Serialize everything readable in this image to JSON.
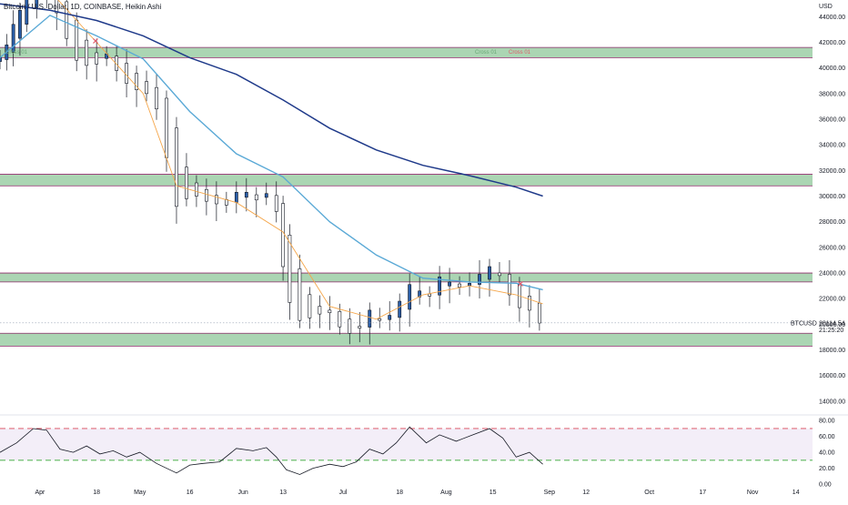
{
  "header": {
    "title": "Bitcoin / U.S. Dollar, 1D, COINBASE, Heikin Ashi"
  },
  "price_axis": {
    "unit": "USD",
    "last_label": "BTCUSD",
    "last_price": "20114.54",
    "countdown": "21:25:20"
  },
  "annotations": {
    "cross_left": "Cross 01",
    "cross_mid": "Cross 01",
    "cross_right": "Cross 01"
  },
  "colors": {
    "up_candle": "#2a5ea8",
    "down_candle": "#ffffff",
    "candle_outline": "#131722",
    "support_zone": "#8fc79a",
    "support_border": "#8e2a6a",
    "ma_fast": "#f5a64a",
    "ma_mid": "#5aa9d6",
    "ma_slow": "#1f3a8a",
    "rsi_line": "#131722",
    "rsi_band": "#f3eef8",
    "rsi_upper": "#e06c7a",
    "rsi_lower": "#5cb85c",
    "cross_green": "#6aa877",
    "cross_red": "#e0596a"
  },
  "chart_data": [
    {
      "type": "candlestick",
      "title": "Bitcoin / U.S. Dollar, 1D, COINBASE, Heikin Ashi",
      "y_ticks": [
        "44000.00",
        "42000.00",
        "40000.00",
        "38000.00",
        "36000.00",
        "34000.00",
        "32000.00",
        "30000.00",
        "28000.00",
        "26000.00",
        "24000.00",
        "22000.00",
        "20000.00",
        "18000.00",
        "16000.00",
        "14000.00"
      ],
      "ylim": [
        13000,
        45300
      ],
      "x_ticks": [
        "Apr",
        "18",
        "May",
        "16",
        "Jun",
        "13",
        "Jul",
        "18",
        "Aug",
        "15",
        "Sep",
        "12",
        "Oct",
        "17",
        "Nov",
        "14"
      ],
      "support_zones": [
        [
          40800,
          41600
        ],
        [
          30800,
          31700
        ],
        [
          23300,
          24000
        ],
        [
          18300,
          19300
        ]
      ],
      "close_series": [
        [
          "2022-03-20",
          40800
        ],
        [
          "2022-03-22",
          41800
        ],
        [
          "2022-03-24",
          43400
        ],
        [
          "2022-03-26",
          44500
        ],
        [
          "2022-03-28",
          46000
        ],
        [
          "2022-03-31",
          46800
        ],
        [
          "2022-04-03",
          46300
        ],
        [
          "2022-04-06",
          44300
        ],
        [
          "2022-04-09",
          42300
        ],
        [
          "2022-04-12",
          40600
        ],
        [
          "2022-04-15",
          40200
        ],
        [
          "2022-04-18",
          40300
        ],
        [
          "2022-04-21",
          41100
        ],
        [
          "2022-04-24",
          39800
        ],
        [
          "2022-04-27",
          38800
        ],
        [
          "2022-04-30",
          38300
        ],
        [
          "2022-05-03",
          38000
        ],
        [
          "2022-05-06",
          36800
        ],
        [
          "2022-05-09",
          33000
        ],
        [
          "2022-05-12",
          29200
        ],
        [
          "2022-05-15",
          29800
        ],
        [
          "2022-05-18",
          30000
        ],
        [
          "2022-05-21",
          29600
        ],
        [
          "2022-05-24",
          29400
        ],
        [
          "2022-05-27",
          29300
        ],
        [
          "2022-05-30",
          30300
        ],
        [
          "2022-06-02",
          30300
        ],
        [
          "2022-06-05",
          29700
        ],
        [
          "2022-06-08",
          30200
        ],
        [
          "2022-06-11",
          28800
        ],
        [
          "2022-06-13",
          24500
        ],
        [
          "2022-06-15",
          21700
        ],
        [
          "2022-06-18",
          20300
        ],
        [
          "2022-06-21",
          20500
        ],
        [
          "2022-06-24",
          20800
        ],
        [
          "2022-06-27",
          20900
        ],
        [
          "2022-06-30",
          19800
        ],
        [
          "2022-07-03",
          19300
        ],
        [
          "2022-07-06",
          19700
        ],
        [
          "2022-07-09",
          21100
        ],
        [
          "2022-07-12",
          20300
        ],
        [
          "2022-07-15",
          20700
        ],
        [
          "2022-07-18",
          21800
        ],
        [
          "2022-07-21",
          23100
        ],
        [
          "2022-07-24",
          22600
        ],
        [
          "2022-07-27",
          22200
        ],
        [
          "2022-07-30",
          23700
        ],
        [
          "2022-08-02",
          23300
        ],
        [
          "2022-08-05",
          22900
        ],
        [
          "2022-08-08",
          23200
        ],
        [
          "2022-08-11",
          23900
        ],
        [
          "2022-08-14",
          24500
        ],
        [
          "2022-08-17",
          23800
        ],
        [
          "2022-08-20",
          22300
        ],
        [
          "2022-08-23",
          21300
        ],
        [
          "2022-08-26",
          21100
        ],
        [
          "2022-08-29",
          20100
        ]
      ],
      "moving_averages": [
        {
          "points": [
            [
              "2022-04-04",
              46000
            ],
            [
              "2022-04-18",
              42000
            ],
            [
              "2022-05-02",
              38000
            ],
            [
              "2022-05-12",
              30800
            ],
            [
              "2022-05-30",
              29500
            ],
            [
              "2022-06-13",
              27200
            ],
            [
              "2022-06-27",
              21400
            ],
            [
              "2022-07-11",
              20400
            ],
            [
              "2022-07-25",
              22300
            ],
            [
              "2022-08-08",
              23000
            ],
            [
              "2022-08-22",
              22300
            ],
            [
              "2022-08-30",
              21600
            ]
          ]
        },
        {
          "points": [
            [
              "2022-03-20",
              40800
            ],
            [
              "2022-04-04",
              44100
            ],
            [
              "2022-04-18",
              42500
            ],
            [
              "2022-05-02",
              40700
            ],
            [
              "2022-05-16",
              36600
            ],
            [
              "2022-05-30",
              33300
            ],
            [
              "2022-06-13",
              31500
            ],
            [
              "2022-06-27",
              28000
            ],
            [
              "2022-07-11",
              25400
            ],
            [
              "2022-07-25",
              23600
            ],
            [
              "2022-08-08",
              23300
            ],
            [
              "2022-08-22",
              23200
            ],
            [
              "2022-08-30",
              22700
            ]
          ]
        },
        {
          "points": [
            [
              "2022-03-20",
              45000
            ],
            [
              "2022-04-04",
              44500
            ],
            [
              "2022-04-18",
              43700
            ],
            [
              "2022-05-02",
              42500
            ],
            [
              "2022-05-16",
              40800
            ],
            [
              "2022-05-30",
              39500
            ],
            [
              "2022-06-13",
              37500
            ],
            [
              "2022-06-27",
              35300
            ],
            [
              "2022-07-11",
              33600
            ],
            [
              "2022-07-25",
              32400
            ],
            [
              "2022-08-08",
              31600
            ],
            [
              "2022-08-22",
              30700
            ],
            [
              "2022-08-30",
              30000
            ]
          ]
        }
      ]
    },
    {
      "type": "line",
      "y_ticks": [
        "80.00",
        "60.00",
        "40.00",
        "20.00",
        "0.00"
      ],
      "ylim": [
        0,
        86
      ],
      "levels": [
        70,
        30
      ],
      "series": [
        {
          "points": [
            [
              "2022-03-20",
              40
            ],
            [
              "2022-03-25",
              52
            ],
            [
              "2022-03-30",
              70
            ],
            [
              "2022-04-03",
              68
            ],
            [
              "2022-04-07",
              44
            ],
            [
              "2022-04-11",
              40
            ],
            [
              "2022-04-15",
              48
            ],
            [
              "2022-04-19",
              38
            ],
            [
              "2022-04-23",
              42
            ],
            [
              "2022-04-27",
              34
            ],
            [
              "2022-05-01",
              40
            ],
            [
              "2022-05-06",
              26
            ],
            [
              "2022-05-12",
              14
            ],
            [
              "2022-05-16",
              24
            ],
            [
              "2022-05-20",
              26
            ],
            [
              "2022-05-25",
              28
            ],
            [
              "2022-05-30",
              45
            ],
            [
              "2022-06-04",
              42
            ],
            [
              "2022-06-08",
              46
            ],
            [
              "2022-06-11",
              34
            ],
            [
              "2022-06-14",
              18
            ],
            [
              "2022-06-18",
              12
            ],
            [
              "2022-06-22",
              20
            ],
            [
              "2022-06-27",
              25
            ],
            [
              "2022-07-01",
              22
            ],
            [
              "2022-07-05",
              28
            ],
            [
              "2022-07-09",
              44
            ],
            [
              "2022-07-13",
              38
            ],
            [
              "2022-07-17",
              52
            ],
            [
              "2022-07-21",
              72
            ],
            [
              "2022-07-26",
              52
            ],
            [
              "2022-07-30",
              62
            ],
            [
              "2022-08-04",
              54
            ],
            [
              "2022-08-09",
              62
            ],
            [
              "2022-08-14",
              70
            ],
            [
              "2022-08-18",
              58
            ],
            [
              "2022-08-22",
              34
            ],
            [
              "2022-08-26",
              40
            ],
            [
              "2022-08-30",
              25
            ]
          ]
        }
      ]
    }
  ]
}
